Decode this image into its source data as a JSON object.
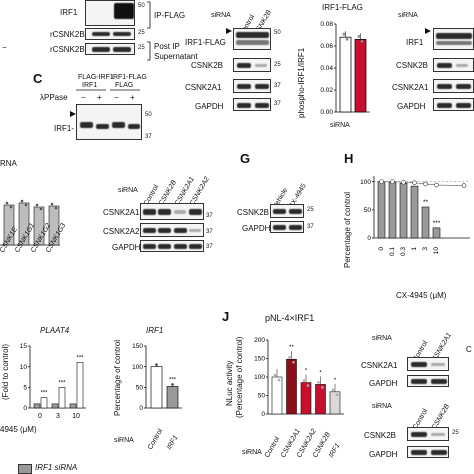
{
  "panels": {
    "B": {
      "labels": {
        "irf1": "IRF1",
        "p_irf1": "IRF1",
        "ip_flag": "IP-FLAG",
        "rcsnk2b": "rCSNK2B",
        "rcsnk2b2": "rCSNK2B",
        "post_ip": "Post IP",
        "supernatant": "Supernatant"
      },
      "mw": {
        "m50": "50",
        "m25": "25",
        "m25b": "25"
      }
    },
    "C": {
      "letter": "C",
      "cols": [
        "FLAG-IRF1",
        "IRF1-FLAG"
      ],
      "col_sub": [
        "IRF1",
        "FLAG"
      ],
      "lambda": "λPPase",
      "signs": [
        "−",
        "+",
        "−",
        "+"
      ],
      "row": "IRF1-",
      "mw": [
        "50",
        "37"
      ]
    },
    "D": {
      "sirna": "siRNA",
      "cols": [
        "Control",
        "CSNK2B"
      ],
      "rows": [
        "IRF1-FLAG",
        "CSNK2B",
        "CSNK2A1",
        "GAPDH"
      ],
      "mw": [
        "50",
        "25",
        "37",
        "37"
      ],
      "chart_title": "IRF1-FLAG",
      "ylabel": "phospho-IRF1/IRF1",
      "yticks": [
        "0.00",
        "0.02",
        "0.04",
        "0.06",
        "0.08"
      ],
      "xcats": [
        "Control",
        "CSNK2B"
      ]
    },
    "E": {
      "sirna": "siRNA",
      "rows": [
        "IRF1",
        "CSNK2B",
        "CSNK2A1",
        "GAPDH"
      ]
    },
    "F": {
      "sirna_left": "siRNA",
      "xcats": [
        "CSNK1E",
        "CSNK1G1",
        "CSNK1G2",
        "CSNK1G3"
      ],
      "sirna": "siRNA",
      "cols": [
        "Control",
        "CSNK2B",
        "CSNK2A1",
        "CSNK2A2"
      ],
      "rows": [
        "CSNK2A1",
        "CSNK2A2",
        "GAPDH"
      ],
      "mw": [
        "37",
        "37",
        "37"
      ]
    },
    "G": {
      "letter": "G",
      "cols": [
        "Vehicle",
        "CX-4945"
      ],
      "rows": [
        "CSNK2B",
        "GAPDH"
      ],
      "mw": [
        "25",
        "37"
      ]
    },
    "H": {
      "letter": "H",
      "ylabel": "Percentage of control",
      "yticks": [
        "0",
        "50",
        "100"
      ],
      "xcats": [
        "0",
        "0.1",
        "0.3",
        "1",
        "3",
        "10"
      ],
      "xlabel": "CX-4945 (μM)",
      "stars": [
        "**",
        "***"
      ]
    },
    "I": {
      "title_left": "PLAAT4",
      "title_right": "IRF1",
      "ylabel_left": "(Fold to control)",
      "ylabel_right": "Percentage of control",
      "yticks_left": [
        "0",
        "5",
        "10",
        "15"
      ],
      "yticks_right": [
        "0",
        "50",
        "100",
        "150"
      ],
      "xcats_left": [
        "0",
        "3",
        "10"
      ],
      "xlabel_left": "4945 (μM)",
      "sirna": "siRNA",
      "xcats_right": [
        "Control",
        "IRF1"
      ],
      "legend": "IRF1 siRNA",
      "stars": [
        "***",
        "***",
        "***",
        "***"
      ]
    },
    "J": {
      "letter": "J",
      "title": "pNL-4×IRF1",
      "ylabel_1": "NLuc activity",
      "ylabel_2": "(Percentage of control)",
      "yticks": [
        "0",
        "50",
        "100",
        "150",
        "200"
      ],
      "sirna": "siRNA",
      "xcats": [
        "Control",
        "CSNK2A1",
        "CSNK2A2",
        "CSNK2B",
        "IRF1"
      ],
      "stars": [
        "**",
        "*",
        "*",
        "*"
      ],
      "blot1": {
        "sirna": "siRNA",
        "cols": [
          "Control",
          "CSNK2A1"
        ],
        "rows": [
          "CSNK2A1",
          "GAPDH"
        ]
      },
      "blot2": {
        "sirna": "siRNA",
        "cols": [
          "Control",
          "CSNK2B"
        ],
        "rows": [
          "CSNK2B",
          "GAPDH"
        ],
        "mw": [
          "25"
        ]
      },
      "edge_letter": "C"
    }
  },
  "colors": {
    "red": "#c8102e",
    "darkred": "#8b0f1a",
    "gray": "#9a9a9a",
    "lightgray": "#cfcfcf"
  },
  "chart_data": [
    {
      "type": "bar",
      "title": "IRF1-FLAG",
      "categories": [
        "Control",
        "CSNK2B"
      ],
      "values": [
        0.068,
        0.066
      ],
      "ylabel": "phospho-IRF1/IRF1",
      "ylim": [
        0,
        0.08
      ]
    },
    {
      "type": "bar",
      "categories": [
        "0",
        "0.1",
        "0.3",
        "1",
        "3",
        "10"
      ],
      "values": [
        100,
        99,
        97,
        92,
        55,
        18
      ],
      "xlabel": "CX-4945 (μM)",
      "ylabel": "Percentage of control",
      "ylim": [
        0,
        110
      ]
    },
    {
      "type": "bar",
      "title": "IRF1",
      "categories": [
        "Control",
        "IRF1"
      ],
      "values": [
        100,
        52
      ],
      "ylabel": "Percentage of control",
      "ylim": [
        0,
        150
      ]
    },
    {
      "type": "bar",
      "title": "pNL-4×IRF1",
      "categories": [
        "Control",
        "CSNK2A1",
        "CSNK2A2",
        "CSNK2B",
        "IRF1"
      ],
      "values": [
        100,
        148,
        85,
        80,
        60
      ],
      "ylabel": "NLuc activity (Percentage of control)",
      "ylim": [
        0,
        200
      ]
    }
  ]
}
